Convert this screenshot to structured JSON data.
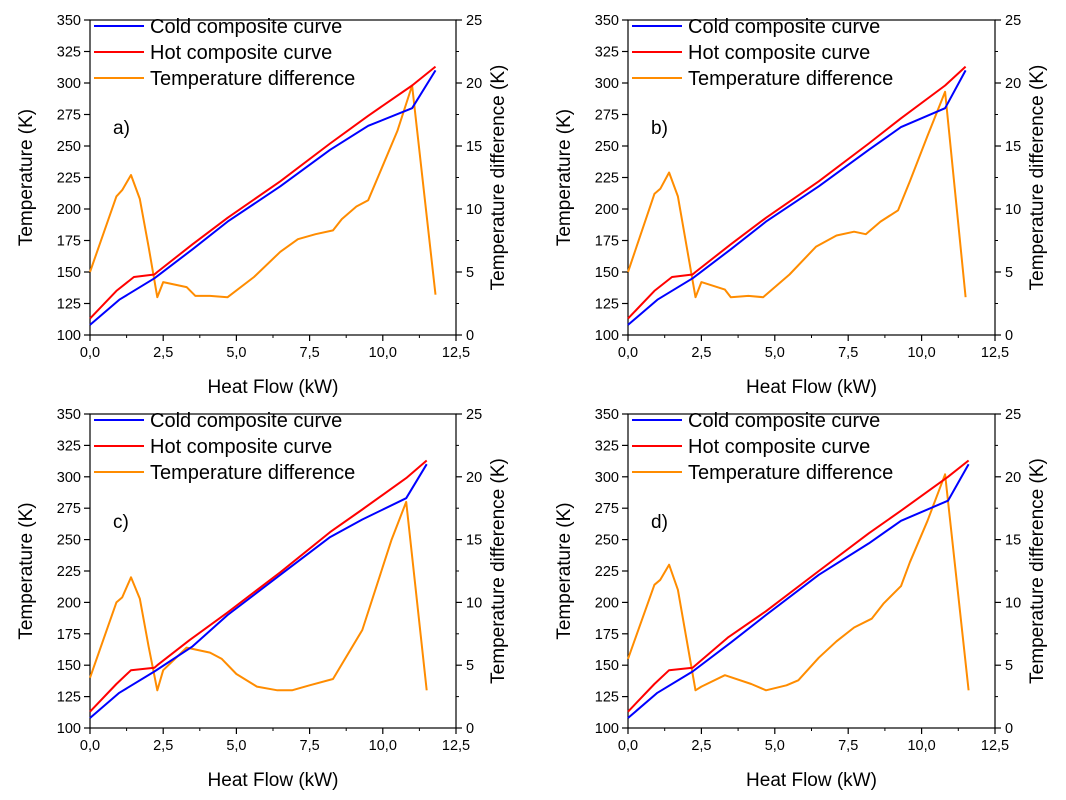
{
  "colors": {
    "cold": "#0000ff",
    "hot": "#ff0000",
    "diff": "#ff8c00",
    "axis": "#000000"
  },
  "chart_data": [
    {
      "type": "line",
      "panel_label": "a)",
      "xlabel": "Heat Flow (kW)",
      "ylabel": "Temperature (K)",
      "y2label": "Temperature difference (K)",
      "xlim": [
        0,
        12.5
      ],
      "ylim": [
        100,
        350
      ],
      "y2lim": [
        0,
        25
      ],
      "x_ticks": [
        "0,0",
        "2,5",
        "5,0",
        "7,5",
        "10,0",
        "12,5"
      ],
      "y_ticks": [
        "100",
        "125",
        "150",
        "175",
        "200",
        "225",
        "250",
        "275",
        "300",
        "325",
        "350"
      ],
      "y2_ticks": [
        "0",
        "5",
        "10",
        "15",
        "20",
        "25"
      ],
      "grid": false,
      "legend_position": "top-left",
      "series": [
        {
          "name": "Cold composite curve",
          "axis": "left",
          "x": [
            0,
            1,
            2.2,
            3.5,
            4.7,
            6.5,
            8.2,
            9.5,
            11,
            11.8
          ],
          "y": [
            108,
            128,
            145,
            168,
            190,
            218,
            247,
            266,
            280,
            310
          ]
        },
        {
          "name": "Hot composite curve",
          "axis": "left",
          "x": [
            0,
            0.9,
            1.5,
            2.2,
            2.3,
            3.5,
            4.7,
            6.5,
            8.2,
            9.5,
            11,
            11.8
          ],
          "y": [
            113,
            135,
            146,
            148,
            150,
            172,
            193,
            222,
            252,
            274,
            298,
            313
          ]
        },
        {
          "name": "Temperature difference",
          "axis": "right",
          "x": [
            0,
            0.9,
            1.1,
            1.4,
            1.7,
            2.0,
            2.3,
            2.5,
            3.3,
            3.6,
            4.1,
            4.7,
            5.6,
            6.5,
            7.1,
            7.7,
            8.3,
            8.6,
            9.1,
            9.5,
            9.9,
            10.5,
            11.0,
            11.8
          ],
          "y": [
            5,
            11,
            11.5,
            12.7,
            10.8,
            7,
            3,
            4.2,
            3.8,
            3.1,
            3.1,
            3.0,
            4.6,
            6.6,
            7.6,
            8.0,
            8.3,
            9.2,
            10.2,
            10.7,
            12.9,
            16.2,
            19.8,
            3.2
          ]
        }
      ]
    },
    {
      "type": "line",
      "panel_label": "b)",
      "xlabel": "Heat Flow (kW)",
      "ylabel": "Temperature (K)",
      "y2label": "Temperature difference (K)",
      "xlim": [
        0,
        12.5
      ],
      "ylim": [
        100,
        350
      ],
      "y2lim": [
        0,
        25
      ],
      "x_ticks": [
        "0,0",
        "2,5",
        "5,0",
        "7,5",
        "10,0",
        "12,5"
      ],
      "y_ticks": [
        "100",
        "125",
        "150",
        "175",
        "200",
        "225",
        "250",
        "275",
        "300",
        "325",
        "350"
      ],
      "y2_ticks": [
        "0",
        "5",
        "10",
        "15",
        "20",
        "25"
      ],
      "grid": false,
      "legend_position": "top-left",
      "series": [
        {
          "name": "Cold composite curve",
          "axis": "left",
          "x": [
            0,
            1,
            2.2,
            3.5,
            4.7,
            6.5,
            8.2,
            9.3,
            10.8,
            11.5
          ],
          "y": [
            108,
            128,
            145,
            168,
            190,
            218,
            247,
            265,
            280,
            310
          ]
        },
        {
          "name": "Hot composite curve",
          "axis": "left",
          "x": [
            0,
            0.9,
            1.5,
            2.2,
            2.3,
            3.5,
            4.7,
            6.5,
            8.2,
            9.3,
            10.8,
            11.5
          ],
          "y": [
            113,
            135,
            146,
            148,
            150,
            172,
            193,
            222,
            252,
            272,
            298,
            313
          ]
        },
        {
          "name": "Temperature difference",
          "axis": "right",
          "x": [
            0,
            0.9,
            1.1,
            1.4,
            1.7,
            2.0,
            2.3,
            2.5,
            3.3,
            3.5,
            4.1,
            4.6,
            5.5,
            6.4,
            7.1,
            7.7,
            8.1,
            8.6,
            9.2,
            9.6,
            10.2,
            10.8,
            11.5
          ],
          "y": [
            5,
            11.2,
            11.6,
            12.9,
            11,
            7,
            3.0,
            4.2,
            3.6,
            3.0,
            3.1,
            3.0,
            4.8,
            7.0,
            7.9,
            8.2,
            8.0,
            9.0,
            9.9,
            12.2,
            15.8,
            19.3,
            3.0
          ]
        }
      ]
    },
    {
      "type": "line",
      "panel_label": "c)",
      "xlabel": "Heat Flow (kW)",
      "ylabel": "Temperature (K)",
      "y2label": "Temperature difference (K)",
      "xlim": [
        0,
        12.5
      ],
      "ylim": [
        100,
        350
      ],
      "y2lim": [
        0,
        25
      ],
      "x_ticks": [
        "0,0",
        "2,5",
        "5,0",
        "7,5",
        "10,0",
        "12,5"
      ],
      "y_ticks": [
        "100",
        "125",
        "150",
        "175",
        "200",
        "225",
        "250",
        "275",
        "300",
        "325",
        "350"
      ],
      "y2_ticks": [
        "0",
        "5",
        "10",
        "15",
        "20",
        "25"
      ],
      "grid": false,
      "legend_position": "top-left",
      "series": [
        {
          "name": "Cold composite curve",
          "axis": "left",
          "x": [
            0,
            1,
            2.2,
            3.5,
            4.7,
            6.5,
            8.2,
            9.3,
            10.8,
            11.5
          ],
          "y": [
            108,
            128,
            145,
            165,
            190,
            222,
            252,
            266,
            283,
            310
          ]
        },
        {
          "name": "Hot composite curve",
          "axis": "left",
          "x": [
            0,
            0.9,
            1.4,
            2.2,
            2.3,
            3.4,
            4.7,
            6.5,
            8.2,
            9.3,
            10.8,
            11.5
          ],
          "y": [
            113,
            135,
            146,
            148,
            150,
            170,
            192,
            224,
            256,
            274,
            299,
            313
          ]
        },
        {
          "name": "Temperature difference",
          "axis": "right",
          "x": [
            0,
            0.9,
            1.1,
            1.4,
            1.7,
            2.0,
            2.3,
            2.5,
            3.3,
            4.1,
            4.5,
            5.0,
            5.7,
            6.4,
            6.9,
            7.5,
            8.3,
            9.3,
            10.3,
            10.8,
            11.5
          ],
          "y": [
            4,
            10,
            10.4,
            12,
            10.3,
            6.5,
            3.0,
            4.6,
            6.4,
            6.0,
            5.5,
            4.3,
            3.3,
            3.0,
            3.0,
            3.4,
            3.9,
            7.8,
            15,
            18,
            3.0
          ]
        }
      ]
    },
    {
      "type": "line",
      "panel_label": "d)",
      "xlabel": "Heat Flow (kW)",
      "ylabel": "Temperature (K)",
      "y2label": "Temperature difference (K)",
      "xlim": [
        0,
        12.5
      ],
      "ylim": [
        100,
        350
      ],
      "y2lim": [
        0,
        25
      ],
      "x_ticks": [
        "0,0",
        "2,5",
        "5,0",
        "7,5",
        "10,0",
        "12,5"
      ],
      "y_ticks": [
        "100",
        "125",
        "150",
        "175",
        "200",
        "225",
        "250",
        "275",
        "300",
        "325",
        "350"
      ],
      "y2_ticks": [
        "0",
        "5",
        "10",
        "15",
        "20",
        "25"
      ],
      "grid": false,
      "legend_position": "top-left",
      "series": [
        {
          "name": "Cold composite curve",
          "axis": "left",
          "x": [
            0,
            1,
            2.2,
            3.5,
            4.7,
            6.5,
            8.2,
            9.3,
            10.9,
            11.6
          ],
          "y": [
            108,
            128,
            145,
            168,
            190,
            222,
            247,
            265,
            281,
            310
          ]
        },
        {
          "name": "Hot composite curve",
          "axis": "left",
          "x": [
            0,
            0.9,
            1.4,
            2.2,
            2.3,
            3.4,
            4.7,
            6.5,
            8.2,
            9.3,
            10.9,
            11.6
          ],
          "y": [
            113,
            135,
            146,
            148,
            150,
            172,
            193,
            225,
            255,
            273,
            300,
            313
          ]
        },
        {
          "name": "Temperature difference",
          "axis": "right",
          "x": [
            0,
            0.9,
            1.1,
            1.4,
            1.7,
            2.0,
            2.3,
            2.5,
            3.3,
            4.2,
            4.7,
            5.4,
            5.8,
            6.5,
            7.1,
            7.7,
            8.3,
            8.7,
            9.3,
            9.6,
            10.2,
            10.8,
            11.6
          ],
          "y": [
            5.5,
            11.4,
            11.8,
            13,
            11,
            7,
            3.0,
            3.3,
            4.2,
            3.5,
            3.0,
            3.4,
            3.8,
            5.6,
            6.9,
            8.0,
            8.7,
            9.9,
            11.3,
            13.2,
            16.5,
            20.2,
            3.0
          ]
        }
      ]
    }
  ]
}
